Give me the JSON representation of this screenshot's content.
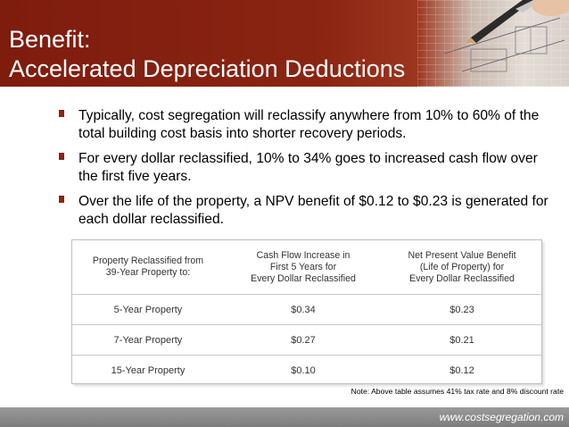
{
  "slide": {
    "title_line1": "Benefit:",
    "title_line2": "Accelerated Depreciation Deductions",
    "bullets": [
      "Typically, cost segregation will reclassify anywhere from 10% to 60% of the total building cost basis into shorter recovery periods.",
      "For every dollar reclassified, 10% to 34% goes to increased cash flow over the first five years.",
      "Over the life of the property, a NPV benefit of $0.12 to $0.23 is generated for each dollar reclassified."
    ],
    "header_image_icon": "blueprint-with-pen-icon"
  },
  "table": {
    "headers": [
      "Property Reclassified from\n39-Year Property to:",
      "Cash Flow Increase in\nFirst 5 Years for\nEvery Dollar Reclassified",
      "Net Present Value Benefit\n(Life of Property) for\nEvery Dollar Reclassified"
    ],
    "rows": [
      [
        "5-Year Property",
        "$0.34",
        "$0.23"
      ],
      [
        "7-Year Property",
        "$0.27",
        "$0.21"
      ],
      [
        "15-Year Property",
        "$0.10",
        "$0.12"
      ]
    ],
    "note": "Note: Above table assumes 41% tax rate and 8% discount rate"
  },
  "footer": {
    "website": "www.costsegregation.com"
  },
  "colors": {
    "header_bg": "#8a2412",
    "bullet_marker": "#8a2412",
    "footer_bg": "#8c8c8c"
  }
}
